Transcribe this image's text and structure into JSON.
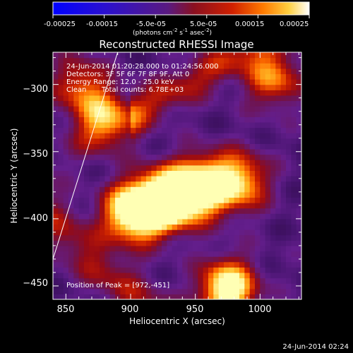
{
  "colorbar": {
    "tick_labels": [
      "-0.00025",
      "-0.00015",
      "-5.0e-05",
      "5.0e-05",
      "0.00015",
      "0.00025"
    ],
    "tick_values": [
      -0.00025,
      -0.00015,
      -5e-05,
      5e-05,
      0.00015,
      0.00025
    ],
    "range": [
      -0.00025,
      0.00025
    ],
    "unit_base": "(photons cm",
    "unit_exp1": "-2",
    "unit_mid": " s",
    "unit_exp2": "-1",
    "unit_mid2": " asec",
    "unit_exp3": "-2",
    "unit_end": ")",
    "colors": [
      "#0000ff",
      "#3300cc",
      "#4b1a8c",
      "#6a1f6a",
      "#a01010",
      "#d22a00",
      "#ff7a00",
      "#ffc030",
      "#ffff80",
      "#ffffff"
    ]
  },
  "info": {
    "time_range": "24-Jun-2014 01:20:28.000 to 01:24:56.000",
    "detectors": "Detectors: 3F 5F 6F 7F 8F 9F, Att 0",
    "energy": "Energy Range: 12.0 - 25.0 keV",
    "clean": "Clean",
    "total_counts": "Total counts: 6.78E+03",
    "peak": "Position of Peak = [972,-451]"
  },
  "footer_timestamp": "24-Jun-2014 02:24",
  "chart_data": {
    "type": "heatmap",
    "title": "Reconstructed RHESSI Image",
    "xlabel": "Heliocentric X (arcsec)",
    "ylabel": "Heliocentric Y (arcsec)",
    "xlim": [
      840,
      1032
    ],
    "ylim": [
      -460,
      -276
    ],
    "xticks": [
      850,
      900,
      950,
      1000
    ],
    "yticks": [
      -300,
      -350,
      -400,
      -450
    ],
    "xtick_labels": [
      "850",
      "900",
      "950",
      "1000"
    ],
    "ytick_labels": [
      "−300",
      "−350",
      "−400",
      "−450"
    ],
    "limb_line": [
      [
        840,
        -430
      ],
      [
        890,
        -276
      ]
    ],
    "sources": [
      {
        "x": 975,
        "y": -452,
        "intensity": 0.95
      },
      {
        "x": 920,
        "y": -389,
        "intensity": 0.9
      },
      {
        "x": 900,
        "y": -395,
        "intensity": 0.85
      },
      {
        "x": 958,
        "y": -375,
        "intensity": 0.8
      },
      {
        "x": 938,
        "y": -382,
        "intensity": 0.75
      },
      {
        "x": 985,
        "y": -372,
        "intensity": 0.65
      },
      {
        "x": 880,
        "y": -325,
        "intensity": 0.6
      },
      {
        "x": 1010,
        "y": -295,
        "intensity": 0.55
      },
      {
        "x": 860,
        "y": -300,
        "intensity": 0.45
      }
    ]
  }
}
